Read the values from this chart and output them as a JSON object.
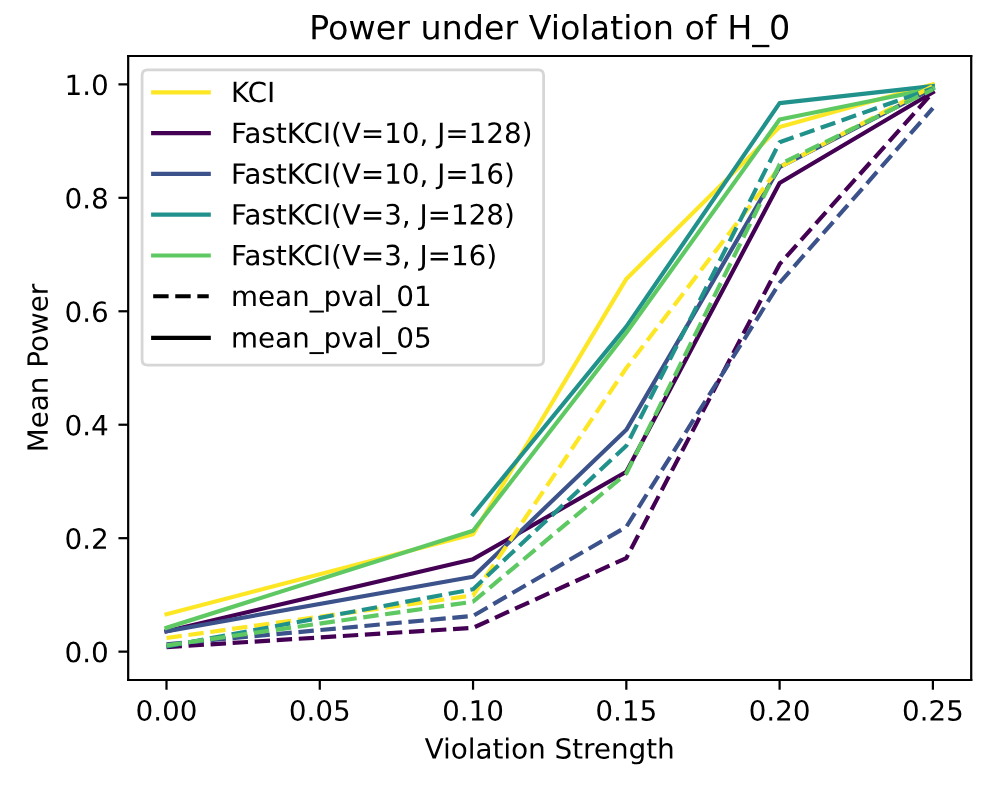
{
  "chart_data": {
    "type": "line",
    "title": "Power under Violation of H_0",
    "xlabel": "Violation Strength",
    "ylabel": "Mean Power",
    "x": [
      0.0,
      0.1,
      0.15,
      0.2,
      0.25
    ],
    "series": [
      {
        "name": "KCI",
        "color": "#fde725",
        "line_style": "solid",
        "values": [
          0.066,
          0.207,
          0.657,
          0.925,
          1.0
        ]
      },
      {
        "name": "FastKCI(V=10, J=128)",
        "color": "#440154",
        "line_style": "solid",
        "values": [
          0.036,
          0.163,
          0.317,
          0.826,
          0.986
        ]
      },
      {
        "name": "FastKCI(V=10, J=16)",
        "color": "#3b528b",
        "line_style": "solid",
        "values": [
          0.036,
          0.132,
          0.391,
          0.854,
          0.993
        ]
      },
      {
        "name": "FastKCI(V=3, J=128)",
        "color": "#21918c",
        "line_style": "solid",
        "values": [
          null,
          0.242,
          0.573,
          0.967,
          0.997
        ]
      },
      {
        "name": "FastKCI(V=3, J=16)",
        "color": "#5ec962",
        "line_style": "solid",
        "values": [
          0.042,
          0.213,
          0.562,
          0.938,
          0.993
        ]
      },
      {
        "color": "#fde725",
        "line_style": "dashed",
        "values": [
          0.024,
          0.099,
          0.5,
          0.854,
          0.997
        ]
      },
      {
        "color": "#440154",
        "line_style": "dashed",
        "values": [
          0.008,
          0.042,
          0.165,
          0.683,
          0.986
        ]
      },
      {
        "color": "#3b528b",
        "line_style": "dashed",
        "values": [
          0.013,
          0.063,
          0.22,
          0.65,
          0.958
        ]
      },
      {
        "color": "#21918c",
        "line_style": "dashed",
        "values": [
          0.009,
          0.11,
          0.363,
          0.898,
          0.993
        ]
      },
      {
        "color": "#5ec962",
        "line_style": "dashed",
        "values": [
          0.011,
          0.088,
          0.314,
          0.859,
          0.991
        ]
      },
      {
        "name": "mean_pval_01",
        "color": "#000000",
        "line_style": "dashed",
        "values": [
          null,
          null,
          null,
          null,
          null
        ]
      },
      {
        "name": "mean_pval_05",
        "color": "#000000",
        "line_style": "solid",
        "values": [
          null,
          null,
          null,
          null,
          null
        ]
      }
    ],
    "xlim": [
      -0.0125,
      0.2625
    ],
    "xticks": [
      {
        "value": 0.0,
        "label": "0.00"
      },
      {
        "value": 0.05,
        "label": "0.05"
      },
      {
        "value": 0.1,
        "label": "0.10"
      },
      {
        "value": 0.15,
        "label": "0.15"
      },
      {
        "value": 0.2,
        "label": "0.20"
      },
      {
        "value": 0.25,
        "label": "0.25"
      }
    ],
    "ylim": [
      -0.05,
      1.05
    ],
    "yticks": [
      {
        "value": 0.0,
        "label": "0.0"
      },
      {
        "value": 0.2,
        "label": "0.2"
      },
      {
        "value": 0.4,
        "label": "0.4"
      },
      {
        "value": 0.6,
        "label": "0.6"
      },
      {
        "value": 0.8,
        "label": "0.8"
      },
      {
        "value": 1.0,
        "label": "1.0"
      }
    ],
    "grid": false,
    "legend": "top left",
    "marker": "none"
  }
}
